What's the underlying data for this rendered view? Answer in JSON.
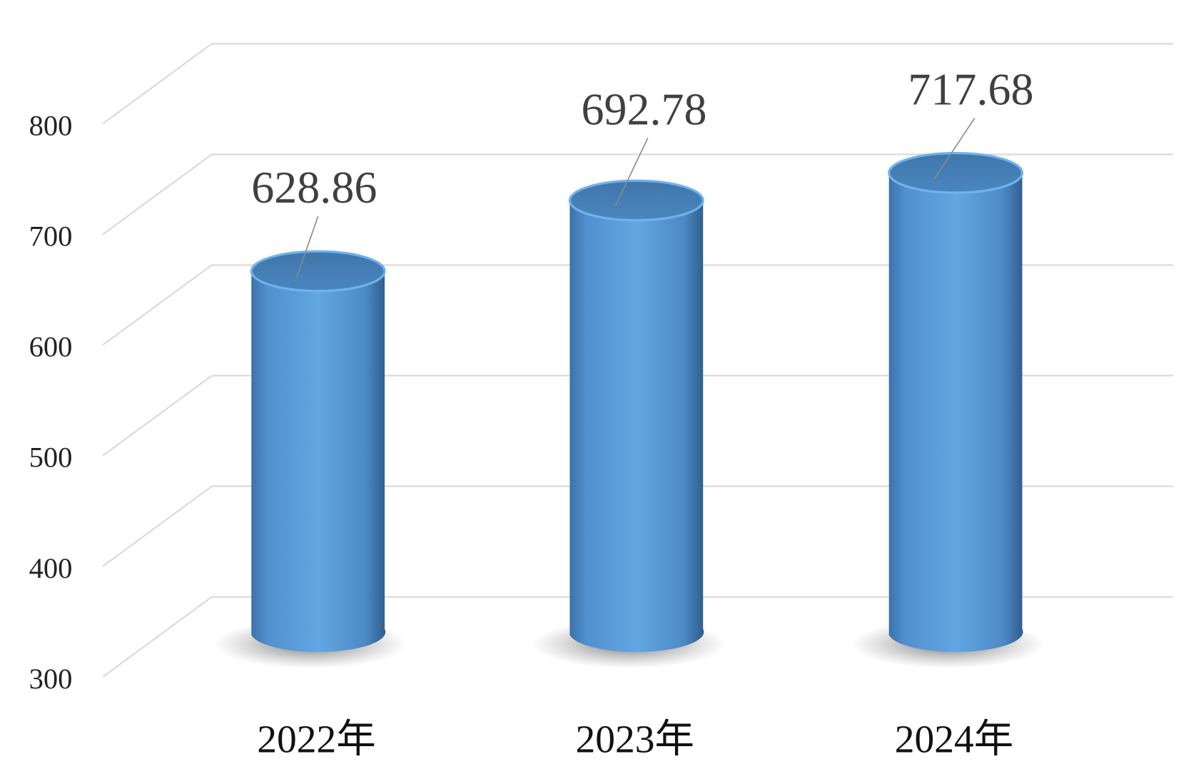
{
  "chart_data": {
    "type": "bar",
    "style": "3d-cylinder",
    "categories": [
      "2022年",
      "2023年",
      "2024年"
    ],
    "values": [
      628.86,
      692.78,
      717.68
    ],
    "data_labels": [
      "628.86",
      "692.78",
      "717.68"
    ],
    "y_ticks": [
      "300",
      "400",
      "500",
      "600",
      "700",
      "800"
    ],
    "ylim": [
      300,
      800
    ],
    "title": "",
    "xlabel": "",
    "ylabel": "",
    "grid": true,
    "legend": "none",
    "colors": {
      "bar": "#5b9bd5",
      "bar_dark": "#3a6fa3",
      "grid": "#d9d9d9",
      "label": "#404040"
    }
  }
}
